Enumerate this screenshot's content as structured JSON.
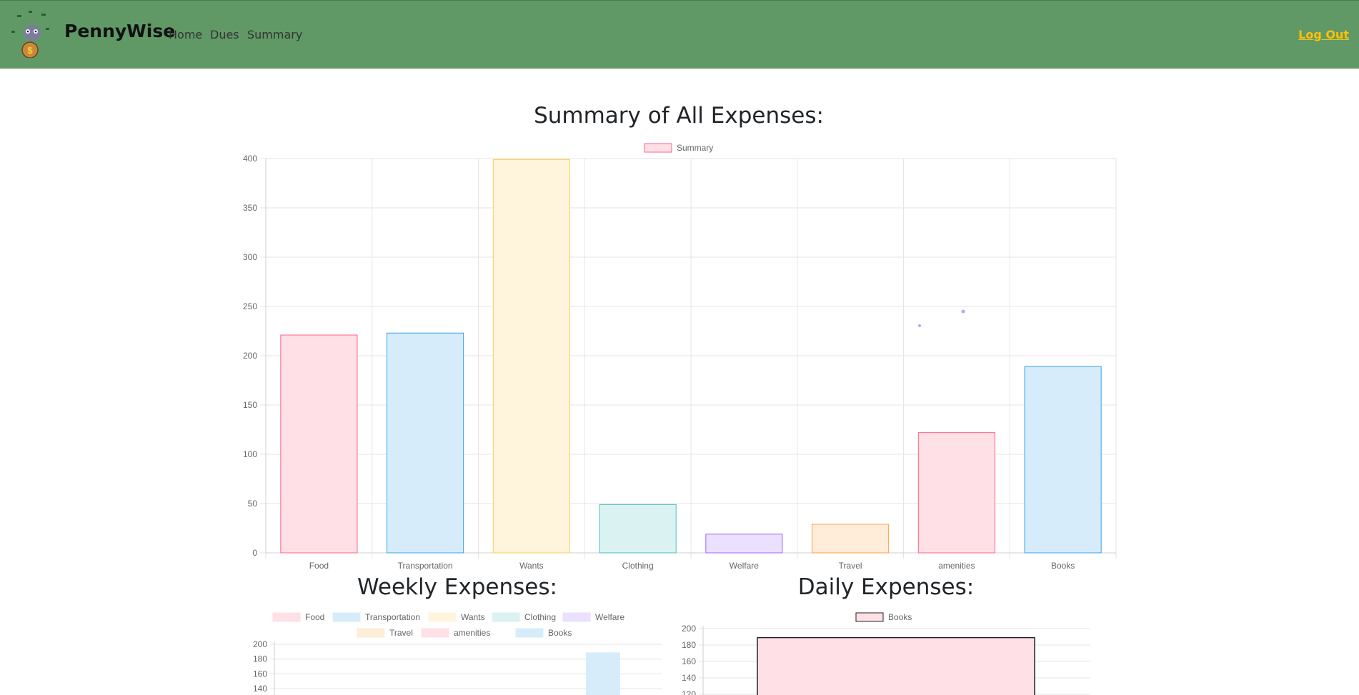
{
  "nav": {
    "brand": "PennyWise",
    "links": [
      "Home",
      "Dues",
      "Summary"
    ],
    "logout": "Log Out"
  },
  "colors": {
    "navbar": "#609966",
    "logout": "#FFC107"
  },
  "summary": {
    "title": "Summary of All Expenses:"
  },
  "weekly": {
    "title": "Weekly Expenses:"
  },
  "daily": {
    "title": "Daily Expenses:"
  },
  "chart_data": [
    {
      "id": "summary",
      "type": "bar",
      "title": "Summary of All Expenses:",
      "legend": [
        "Summary"
      ],
      "categories": [
        "Food",
        "Transportation",
        "Wants",
        "Clothing",
        "Welfare",
        "Travel",
        "amenities",
        "Books"
      ],
      "values": [
        221,
        223,
        399,
        49,
        19,
        29,
        122,
        189
      ],
      "ylim": [
        0,
        400
      ],
      "yticks": [
        0,
        50,
        100,
        150,
        200,
        250,
        300,
        350,
        400
      ],
      "fills": [
        "#FFE0E6",
        "#D7ECFB",
        "#FFF5DD",
        "#DBF2F2",
        "#EBE0FF",
        "#FFECD9",
        "#FFE0E6",
        "#D7ECFB"
      ],
      "strokes": [
        "#FF6384",
        "#36A2EB",
        "#FFCE56",
        "#4BC0C0",
        "#9966FF",
        "#FF9F40",
        "#FF6384",
        "#36A2EB"
      ]
    },
    {
      "id": "weekly",
      "type": "bar",
      "title": "Weekly Expenses:",
      "legend": [
        "Food",
        "Transportation",
        "Wants",
        "Clothing",
        "Welfare",
        "Travel",
        "amenities",
        "Books"
      ],
      "legend_fills": [
        "#FFE0E6",
        "#D7ECFB",
        "#FFF5DD",
        "#DBF2F2",
        "#EBE0FF",
        "#FFECD9",
        "#FFE0E6",
        "#D7ECFB"
      ],
      "yticks_visible": [
        200,
        180,
        160,
        140
      ],
      "values": [
        0,
        0,
        0,
        0,
        0,
        0,
        0,
        189
      ],
      "ylim": [
        0,
        200
      ]
    },
    {
      "id": "daily",
      "type": "bar",
      "title": "Daily Expenses:",
      "legend": [
        "Books"
      ],
      "yticks_visible": [
        200,
        180,
        160,
        140,
        120
      ],
      "values": [
        189
      ],
      "ylim": [
        0,
        200
      ]
    }
  ]
}
